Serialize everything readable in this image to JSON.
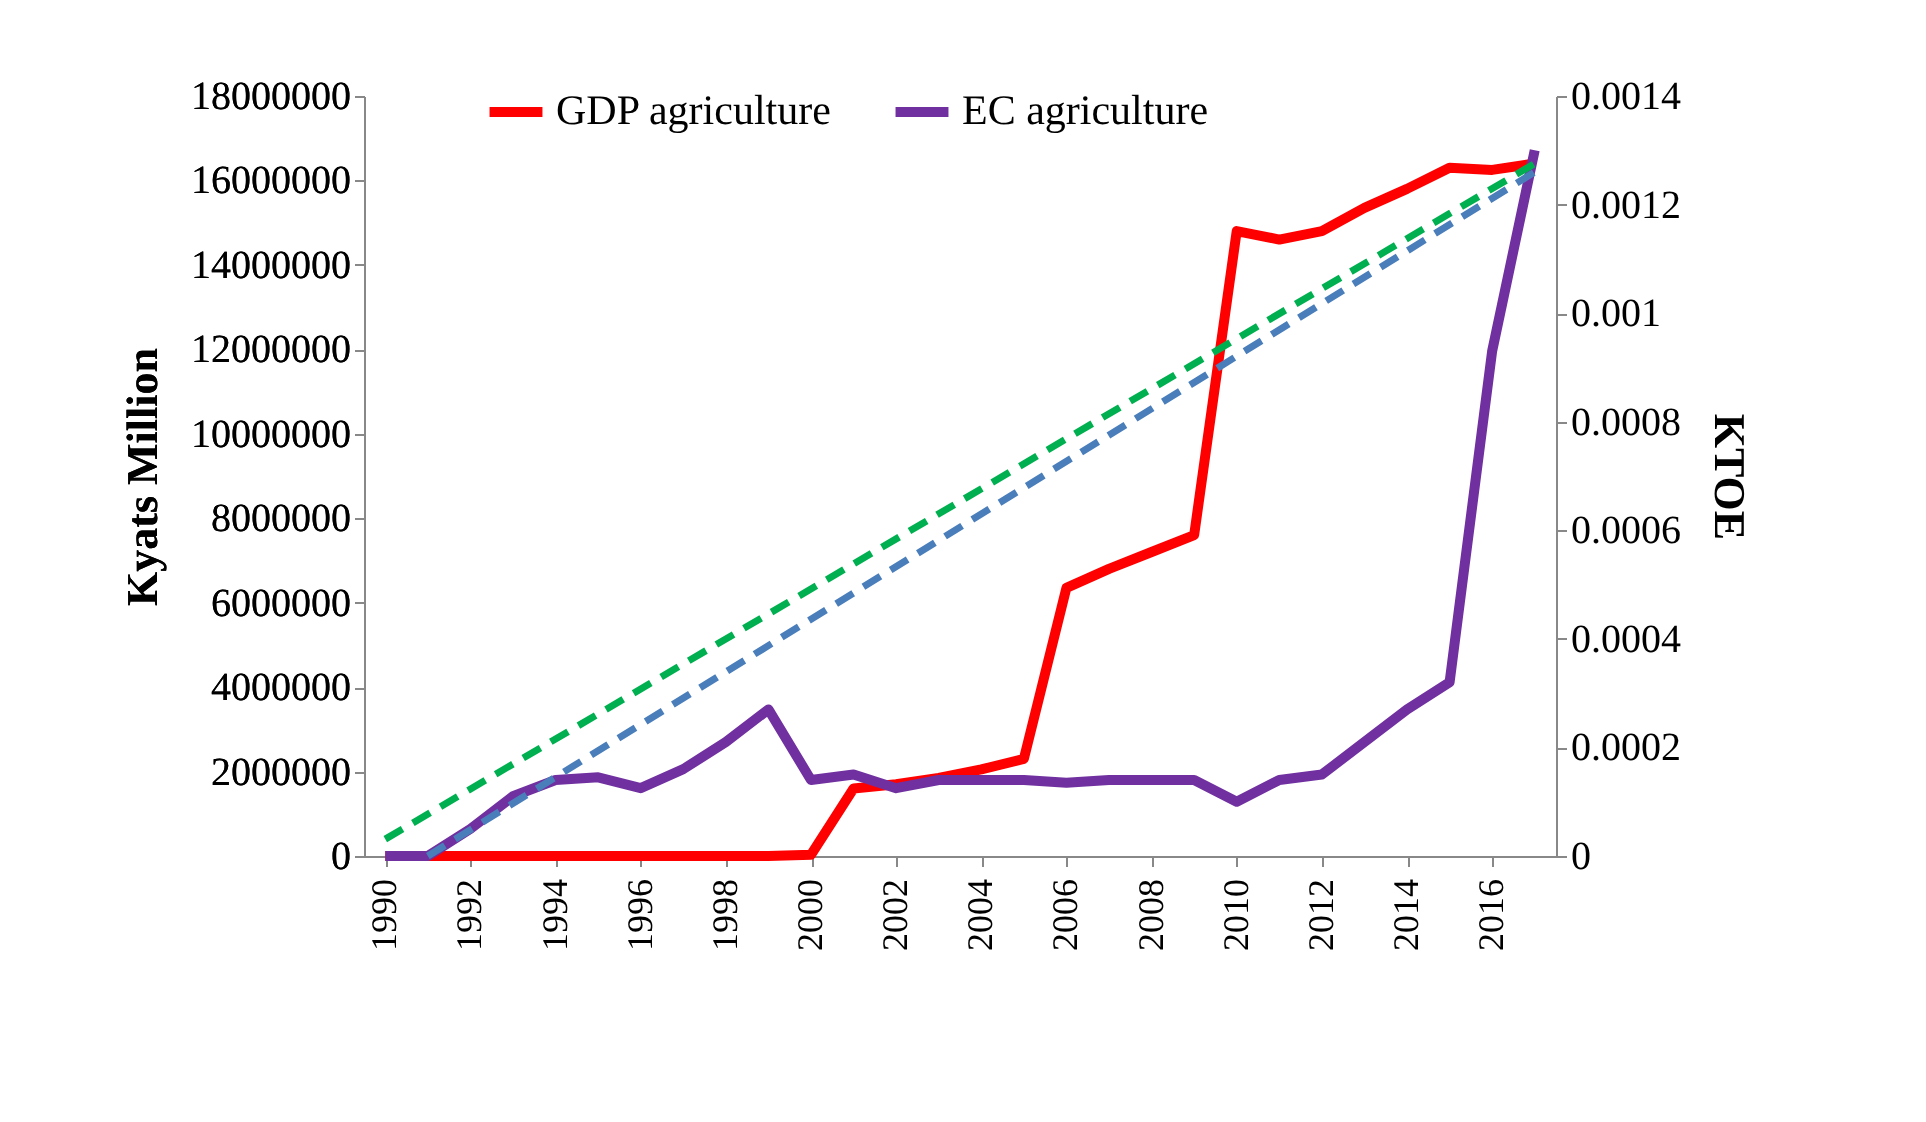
{
  "chart_data": {
    "type": "line",
    "ylabel": "Kyats Million",
    "y2label": "KTOE",
    "legend": "top",
    "x": [
      1990,
      1991,
      1992,
      1993,
      1994,
      1995,
      1996,
      1997,
      1998,
      1999,
      2000,
      2001,
      2002,
      2003,
      2004,
      2005,
      2006,
      2007,
      2008,
      2009,
      2010,
      2011,
      2012,
      2013,
      2014,
      2015,
      2016,
      2017
    ],
    "xlim": [
      1989.5,
      2017.5
    ],
    "xticks": [
      1990,
      1992,
      1994,
      1996,
      1998,
      2000,
      2002,
      2004,
      2006,
      2008,
      2010,
      2012,
      2014,
      2016
    ],
    "ylim": [
      0,
      18000000
    ],
    "yticks": [
      0,
      2000000,
      4000000,
      6000000,
      8000000,
      10000000,
      12000000,
      14000000,
      16000000,
      18000000
    ],
    "y2lim": [
      0,
      0.0014
    ],
    "y2ticks": [
      0,
      0.0002,
      0.0004,
      0.0006,
      0.0008,
      0.001,
      0.0012,
      0.0014
    ],
    "series": [
      {
        "name": "GDP agriculture",
        "color": "#ff0000",
        "values": [
          0,
          0,
          0,
          0,
          0,
          0,
          0,
          0,
          0,
          0,
          30000,
          1600000,
          1700000,
          1850000,
          2050000,
          2300000,
          6350000,
          6800000,
          7200000,
          7600000,
          14800000,
          14600000,
          14800000,
          15350000,
          15800000,
          16300000,
          16250000,
          16400000
        ]
      },
      {
        "name": "EC agriculture",
        "color": "#7030a0",
        "axis": "y2",
        "values": [
          0,
          0,
          5e-05,
          0.00011,
          0.00014,
          0.000145,
          0.000125,
          0.00016,
          0.00021,
          0.00027,
          0.00014,
          0.00015,
          0.000125,
          0.00014,
          0.00014,
          0.00014,
          0.000135,
          0.00014,
          0.00014,
          0.00014,
          0.0001,
          0.00014,
          0.00015,
          0.00021,
          0.00027,
          0.00032,
          0.00093,
          0.0013
        ]
      },
      {
        "type": "line",
        "color": "#00b050",
        "line_style": "dashed",
        "x": [
          1990,
          2017
        ],
        "values": [
          400000,
          16400000
        ]
      },
      {
        "type": "line",
        "color": "#4a7ebb",
        "line_style": "dashed",
        "x": [
          1991,
          2017
        ],
        "values": [
          0,
          16200000
        ]
      }
    ]
  }
}
